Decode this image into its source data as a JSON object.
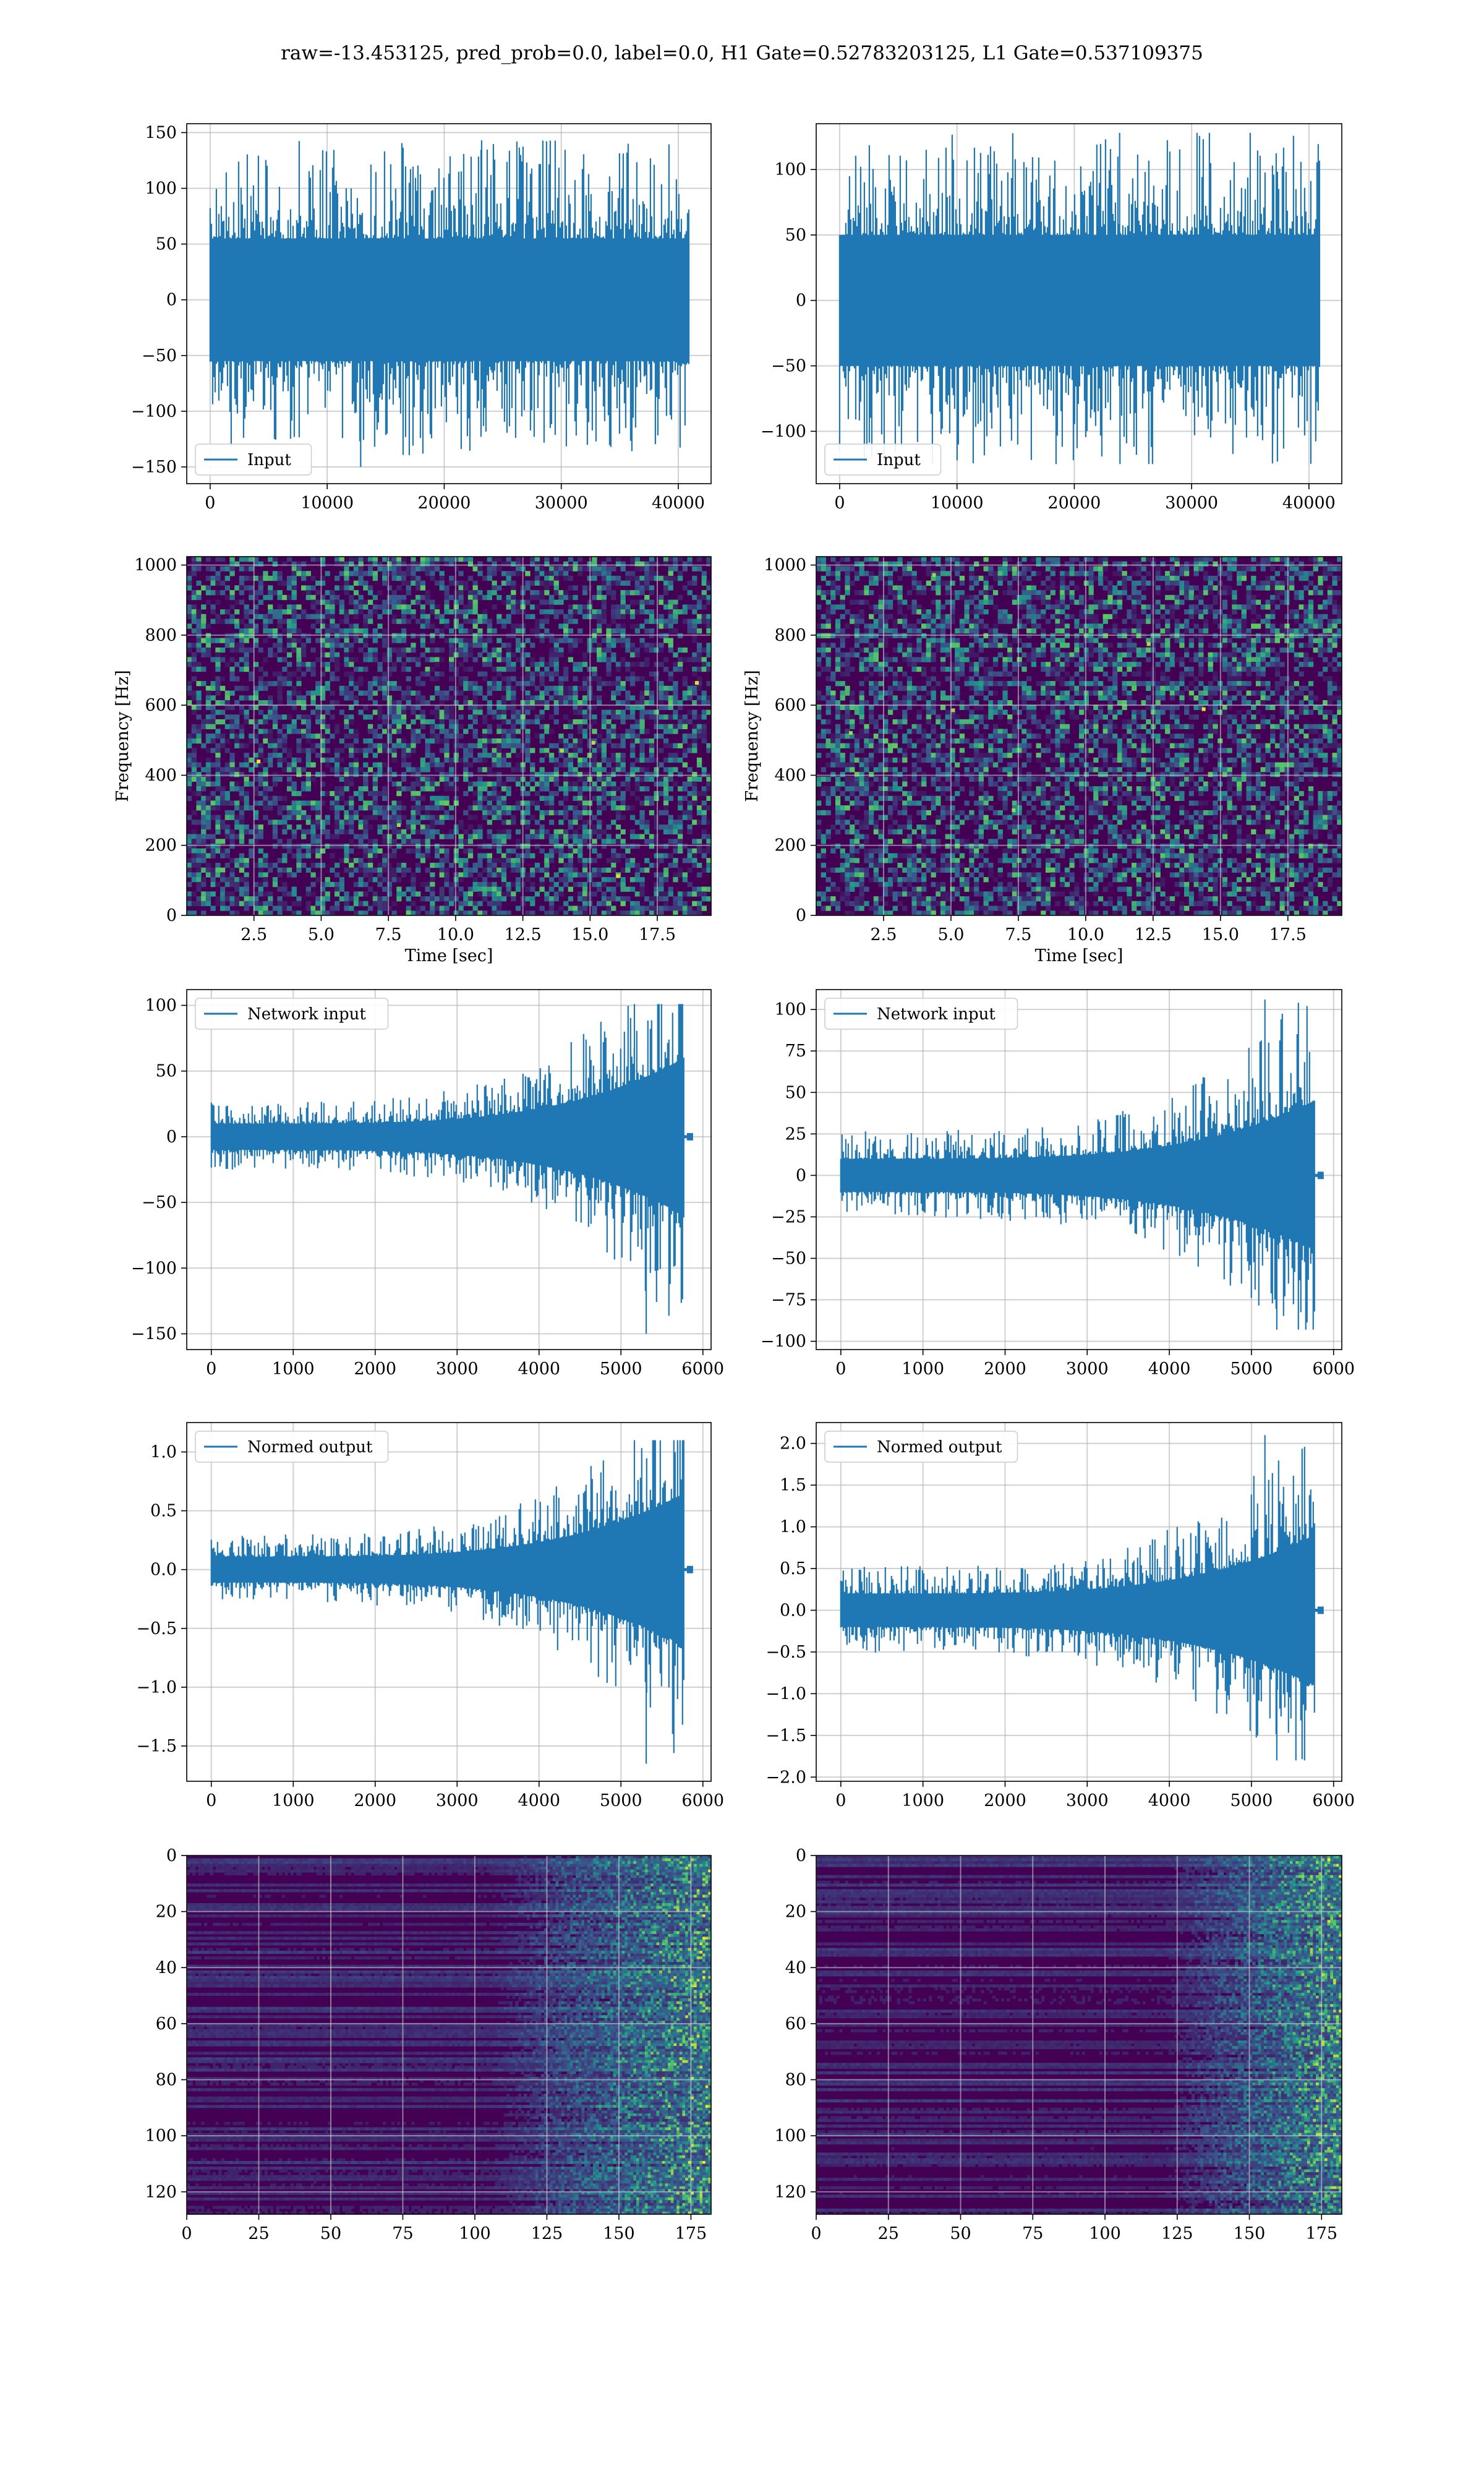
{
  "figure": {
    "title": "raw=-13.453125, pred_prob=0.0, label=0.0, H1 Gate=0.52783203125, L1 Gate=0.537109375"
  },
  "colors": {
    "line": "#1f77b4",
    "grid": "#b0b0b0",
    "viridis_dark": "#440154",
    "viridis_mid": "#21918c",
    "viridis_bright": "#fde725"
  },
  "chart_data": [
    {
      "type": "line",
      "id": "h1-input",
      "row": 0,
      "col": 0,
      "legend": "Input",
      "legend_loc": "lower-left",
      "xlim": [
        -2000,
        42800
      ],
      "ylim": [
        -165,
        158
      ],
      "xticks": [
        0,
        10000,
        20000,
        30000,
        40000
      ],
      "yticks": [
        -150,
        -100,
        -50,
        0,
        50,
        100,
        150
      ],
      "xlabel": "",
      "ylabel": "",
      "signal": {
        "x_end": 40960,
        "shape": "stationary-noise",
        "core_amp": 55,
        "peak_max": 143,
        "peak_min": -150
      }
    },
    {
      "type": "line",
      "id": "l1-input",
      "row": 0,
      "col": 1,
      "legend": "Input",
      "legend_loc": "lower-left",
      "xlim": [
        -2000,
        42800
      ],
      "ylim": [
        -140,
        135
      ],
      "xticks": [
        0,
        10000,
        20000,
        30000,
        40000
      ],
      "yticks": [
        -100,
        -50,
        0,
        50,
        100
      ],
      "xlabel": "",
      "ylabel": "",
      "signal": {
        "x_end": 40960,
        "shape": "stationary-noise",
        "core_amp": 50,
        "peak_max": 128,
        "peak_min": -125
      }
    },
    {
      "type": "heatmap",
      "id": "h1-spectrogram",
      "row": 1,
      "col": 0,
      "xlim": [
        0,
        19.5
      ],
      "ylim": [
        0,
        1024
      ],
      "xticks": [
        2.5,
        5.0,
        7.5,
        10.0,
        12.5,
        15.0,
        17.5
      ],
      "yticks": [
        0,
        200,
        400,
        600,
        800,
        1000
      ],
      "xlabel": "Time [sec]",
      "ylabel": "Frequency [Hz]",
      "colormap": "viridis",
      "pattern": "noise-speckle"
    },
    {
      "type": "heatmap",
      "id": "l1-spectrogram",
      "row": 1,
      "col": 1,
      "xlim": [
        0,
        19.5
      ],
      "ylim": [
        0,
        1024
      ],
      "xticks": [
        2.5,
        5.0,
        7.5,
        10.0,
        12.5,
        15.0,
        17.5
      ],
      "yticks": [
        0,
        200,
        400,
        600,
        800,
        1000
      ],
      "xlabel": "Time [sec]",
      "ylabel": "Frequency [Hz]",
      "colormap": "viridis",
      "pattern": "noise-speckle"
    },
    {
      "type": "line",
      "id": "h1-network-input",
      "row": 2,
      "col": 0,
      "legend": "Network input",
      "legend_loc": "upper-left",
      "xlim": [
        -300,
        6100
      ],
      "ylim": [
        -162,
        112
      ],
      "xticks": [
        0,
        1000,
        2000,
        3000,
        4000,
        5000,
        6000
      ],
      "yticks": [
        -150,
        -100,
        -50,
        0,
        50,
        100
      ],
      "xlabel": "",
      "ylabel": "",
      "signal": {
        "x_end": 5770,
        "tail_end": 5850,
        "shape": "chirp",
        "core_start": 10,
        "core_end": 60,
        "peak_max": 101,
        "peak_min": -150
      }
    },
    {
      "type": "line",
      "id": "l1-network-input",
      "row": 2,
      "col": 1,
      "legend": "Network input",
      "legend_loc": "upper-left",
      "xlim": [
        -300,
        6100
      ],
      "ylim": [
        -105,
        112
      ],
      "xticks": [
        0,
        1000,
        2000,
        3000,
        4000,
        5000,
        6000
      ],
      "yticks": [
        -100,
        -75,
        -50,
        -25,
        0,
        25,
        50,
        75,
        100
      ],
      "xlabel": "",
      "ylabel": "",
      "signal": {
        "x_end": 5770,
        "tail_end": 5850,
        "shape": "chirp",
        "core_start": 10,
        "core_end": 45,
        "peak_max": 106,
        "peak_min": -93
      }
    },
    {
      "type": "line",
      "id": "h1-normed-output",
      "row": 3,
      "col": 0,
      "legend": "Normed output",
      "legend_loc": "upper-left",
      "xlim": [
        -300,
        6100
      ],
      "ylim": [
        -1.8,
        1.25
      ],
      "xticks": [
        0,
        1000,
        2000,
        3000,
        4000,
        5000,
        6000
      ],
      "yticks": [
        -1.5,
        -1.0,
        -0.5,
        0.0,
        0.5,
        1.0
      ],
      "xlabel": "",
      "ylabel": "",
      "signal": {
        "x_end": 5770,
        "tail_end": 5850,
        "shape": "chirp",
        "core_start": 0.11,
        "core_end": 0.65,
        "peak_max": 1.1,
        "peak_min": -1.65
      }
    },
    {
      "type": "line",
      "id": "l1-normed-output",
      "row": 3,
      "col": 1,
      "legend": "Normed output",
      "legend_loc": "upper-left",
      "xlim": [
        -300,
        6100
      ],
      "ylim": [
        -2.05,
        2.25
      ],
      "xticks": [
        0,
        1000,
        2000,
        3000,
        4000,
        5000,
        6000
      ],
      "yticks": [
        -2.0,
        -1.5,
        -1.0,
        -0.5,
        0.0,
        0.5,
        1.0,
        1.5,
        2.0
      ],
      "xlabel": "",
      "ylabel": "",
      "signal": {
        "x_end": 5770,
        "tail_end": 5850,
        "shape": "chirp",
        "core_start": 0.2,
        "core_end": 0.9,
        "peak_max": 2.1,
        "peak_min": -1.8
      }
    },
    {
      "type": "heatmap",
      "id": "h1-feature-map",
      "row": 4,
      "col": 0,
      "xlim": [
        0,
        182
      ],
      "ylim": [
        0,
        128
      ],
      "y_inverted": true,
      "xticks": [
        0,
        25,
        50,
        75,
        100,
        125,
        150,
        175
      ],
      "yticks": [
        0,
        20,
        40,
        60,
        80,
        100,
        120
      ],
      "xlabel": "",
      "ylabel": "",
      "colormap": "viridis",
      "pattern": "activation-rising-right",
      "onset": 105
    },
    {
      "type": "heatmap",
      "id": "l1-feature-map",
      "row": 4,
      "col": 1,
      "xlim": [
        0,
        182
      ],
      "ylim": [
        0,
        128
      ],
      "y_inverted": true,
      "xticks": [
        0,
        25,
        50,
        75,
        100,
        125,
        150,
        175
      ],
      "yticks": [
        0,
        20,
        40,
        60,
        80,
        100,
        120
      ],
      "xlabel": "",
      "ylabel": "",
      "colormap": "viridis",
      "pattern": "activation-rising-right",
      "onset": 120
    }
  ]
}
